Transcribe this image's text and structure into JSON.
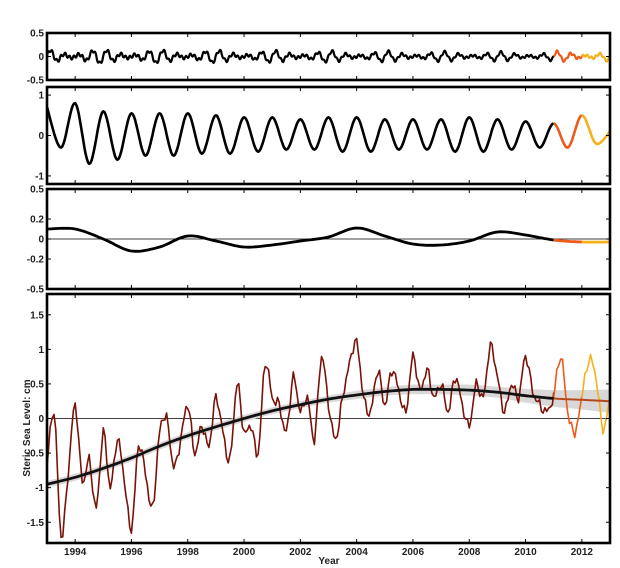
{
  "chart_data": [
    {
      "type": "line",
      "xlim": [
        1993,
        2013
      ],
      "ylim": [
        -0.5,
        0.5
      ],
      "yticks": [
        {
          "v": 0.5,
          "label": "0.5"
        },
        {
          "v": 0,
          "label": "0"
        },
        {
          "v": -0.5,
          "label": "-0.5"
        }
      ],
      "grid": false,
      "kind": "osc",
      "amp": 0.15,
      "period": 0.5,
      "series": [
        {
          "color": "#000000",
          "x": [
            1993,
            2011
          ],
          "amp_end": 0.08
        },
        {
          "color": "#ee5a1a",
          "x": [
            2011,
            2012
          ],
          "amp_end": 0.1
        },
        {
          "color": "#f4b21a",
          "x": [
            2012,
            2013
          ],
          "amp_end": 0.1
        }
      ]
    },
    {
      "type": "line",
      "xlim": [
        1993,
        2013
      ],
      "ylim": [
        -1.2,
        1.2
      ],
      "yticks": [
        {
          "v": 1,
          "label": "1"
        },
        {
          "v": 0,
          "label": "0"
        },
        {
          "v": -1,
          "label": "-1"
        }
      ],
      "grid": false,
      "kind": "annual",
      "x": [
        1993,
        1993.5,
        1994,
        1994.5,
        1995,
        1995.5,
        1996,
        1996.5,
        1997,
        1997.5,
        1998,
        1998.5,
        1999,
        1999.5,
        2000,
        2000.5,
        2001,
        2001.5,
        2002,
        2002.5,
        2003,
        2003.5,
        2004,
        2004.5,
        2005,
        2005.5,
        2006,
        2006.5,
        2007,
        2007.5,
        2008,
        2008.5,
        2009,
        2009.5,
        2010,
        2010.5,
        2011,
        2011.5,
        2012,
        2012.5,
        2013
      ],
      "y": [
        0.7,
        -0.3,
        0.8,
        -0.7,
        0.6,
        -0.6,
        0.55,
        -0.5,
        0.55,
        -0.5,
        0.55,
        -0.45,
        0.5,
        -0.45,
        0.45,
        -0.4,
        0.45,
        -0.35,
        0.4,
        -0.35,
        0.45,
        -0.4,
        0.45,
        -0.4,
        0.4,
        -0.35,
        0.4,
        -0.35,
        0.4,
        -0.4,
        0.45,
        -0.4,
        0.4,
        -0.35,
        0.35,
        -0.3,
        0.3,
        -0.3,
        0.5,
        -0.2,
        0.1
      ],
      "segments": [
        {
          "color": "#000000",
          "to": 2011
        },
        {
          "color": "#ee5a1a",
          "to": 2012
        },
        {
          "color": "#f4b21a",
          "to": 2013
        }
      ]
    },
    {
      "type": "line",
      "xlim": [
        1993,
        2013
      ],
      "ylim": [
        -0.5,
        0.5
      ],
      "yticks": [
        {
          "v": 0.5,
          "label": "0.5"
        },
        {
          "v": 0.2,
          "label": "0.2"
        },
        {
          "v": 0,
          "label": "0"
        },
        {
          "v": -0.2,
          "label": "-0.2"
        },
        {
          "v": -0.5,
          "label": "-0.5"
        }
      ],
      "zero_line": true,
      "grid": false,
      "kind": "smooth",
      "x": [
        1993,
        1994,
        1995,
        1996,
        1997,
        1998,
        1999,
        2000,
        2001,
        2002,
        2003,
        2004,
        2005,
        2006,
        2007,
        2008,
        2009,
        2010,
        2011,
        2012,
        2013
      ],
      "y": [
        0.1,
        0.1,
        0.0,
        -0.12,
        -0.08,
        0.03,
        -0.02,
        -0.08,
        -0.06,
        -0.02,
        0.02,
        0.11,
        0.03,
        -0.05,
        -0.06,
        -0.02,
        0.07,
        0.04,
        -0.01,
        -0.03,
        -0.03
      ],
      "segments": [
        {
          "color": "#000000",
          "to": 2011
        },
        {
          "color": "#ee5a1a",
          "to": 2012
        },
        {
          "color": "#f4b21a",
          "to": 2013
        }
      ]
    },
    {
      "type": "line",
      "xlim": [
        1993,
        2013
      ],
      "ylim": [
        -1.8,
        1.8
      ],
      "yticks": [
        {
          "v": 1.5,
          "label": "1.5"
        },
        {
          "v": 1,
          "label": "1"
        },
        {
          "v": 0.5,
          "label": "0.5"
        },
        {
          "v": 0,
          "label": "0"
        },
        {
          "v": -0.5,
          "label": "-0.5"
        },
        {
          "v": -1,
          "label": "-1"
        },
        {
          "v": -1.5,
          "label": "-1.5"
        }
      ],
      "xticks": [
        1994,
        1996,
        1998,
        2000,
        2002,
        2004,
        2006,
        2008,
        2010,
        2012
      ],
      "xlabel": "Year",
      "ylabel": "Steric Sea Level: cm",
      "zero_line": true,
      "grid": false,
      "kind": "raw",
      "series": [
        {
          "name": "",
          "color": "#7a1208",
          "x": [
            1993.0,
            1993.25,
            1993.5,
            1993.75,
            1994.0,
            1994.25,
            1994.5,
            1994.75,
            1995.0,
            1995.25,
            1995.5,
            1995.75,
            1996.0,
            1996.25,
            1996.5,
            1996.75,
            1997.0,
            1997.25,
            1997.5,
            1997.75,
            1998.0,
            1998.25,
            1998.5,
            1998.75,
            1999.0,
            1999.25,
            1999.5,
            1999.75,
            2000.0,
            2000.25,
            2000.5,
            2000.75,
            2001.0,
            2001.25,
            2001.5,
            2001.75,
            2002.0,
            2002.25,
            2002.5,
            2002.75,
            2003.0,
            2003.25,
            2003.5,
            2003.75,
            2004.0,
            2004.25,
            2004.5,
            2004.75,
            2005.0,
            2005.25,
            2005.5,
            2005.75,
            2006.0,
            2006.25,
            2006.5,
            2006.75,
            2007.0,
            2007.25,
            2007.5,
            2007.75,
            2008.0,
            2008.25,
            2008.5,
            2008.75,
            2009.0,
            2009.25,
            2009.5,
            2009.75,
            2010.0,
            2010.25,
            2010.5,
            2010.75,
            2011.0
          ],
          "y": [
            -0.7,
            0.1,
            -1.7,
            -0.8,
            0.2,
            -0.9,
            -0.6,
            -1.3,
            -0.2,
            -1.0,
            -0.3,
            -0.9,
            -1.6,
            -0.4,
            -0.8,
            -1.3,
            -0.2,
            0.0,
            -0.7,
            -0.3,
            0.2,
            -0.5,
            -0.1,
            -0.4,
            0.3,
            -0.2,
            -0.6,
            0.5,
            -0.2,
            -0.1,
            -0.5,
            0.8,
            0.3,
            0.2,
            -0.2,
            0.6,
            0.1,
            0.3,
            -0.3,
            0.9,
            0.2,
            -0.3,
            0.3,
            0.8,
            1.1,
            0.3,
            0.1,
            0.7,
            0.2,
            0.7,
            0.4,
            0.1,
            0.9,
            0.4,
            0.7,
            0.3,
            0.5,
            0.1,
            0.6,
            0.2,
            -0.1,
            0.5,
            0.3,
            1.05,
            0.6,
            0.1,
            0.5,
            0.3,
            0.9,
            0.4,
            0.2,
            0.1,
            0.3
          ]
        },
        {
          "name": "",
          "color": "#ee5a1a",
          "x": [
            2011.0,
            2011.25,
            2011.5,
            2011.75,
            2012.0
          ],
          "y": [
            0.3,
            0.9,
            0.1,
            -0.2,
            0.3
          ]
        },
        {
          "name": "",
          "color": "#f4b21a",
          "x": [
            2012.0,
            2012.25,
            2012.5,
            2012.75,
            2013.0
          ],
          "y": [
            0.3,
            0.85,
            0.6,
            -0.15,
            0.3
          ]
        }
      ],
      "trend": {
        "color": "#111111",
        "band_color": "#d8d8d8",
        "x": [
          1993,
          1994,
          1995,
          1996,
          1997,
          1998,
          1999,
          2000,
          2001,
          2002,
          2003,
          2004,
          2005,
          2006,
          2007,
          2008,
          2009,
          2010,
          2011,
          2012,
          2013
        ],
        "y": [
          -0.95,
          -0.85,
          -0.72,
          -0.57,
          -0.4,
          -0.25,
          -0.12,
          0.0,
          0.11,
          0.2,
          0.28,
          0.34,
          0.39,
          0.42,
          0.42,
          0.41,
          0.38,
          0.33,
          0.29,
          0.27,
          0.25
        ],
        "band_width": [
          0.05,
          0.05,
          0.05,
          0.05,
          0.05,
          0.05,
          0.05,
          0.05,
          0.05,
          0.05,
          0.05,
          0.06,
          0.06,
          0.07,
          0.07,
          0.08,
          0.08,
          0.1,
          0.12,
          0.14,
          0.17
        ]
      }
    }
  ]
}
